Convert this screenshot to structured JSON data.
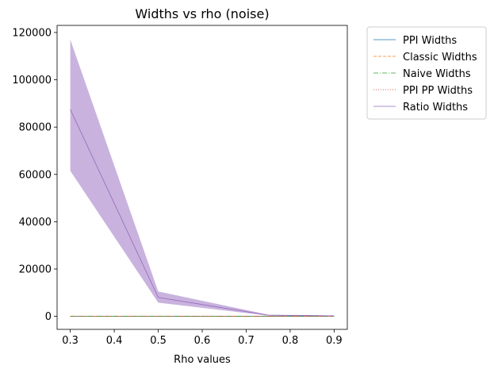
{
  "chart_data": {
    "type": "line",
    "title": "Widths vs rho (noise)",
    "xlabel": "Rho values",
    "ylabel": "",
    "x": [
      0.3,
      0.5,
      0.75,
      0.9
    ],
    "xlim": [
      0.27,
      0.93
    ],
    "ylim": [
      -5500,
      123000
    ],
    "xticks": [
      "0.3",
      "0.4",
      "0.5",
      "0.6",
      "0.7",
      "0.8",
      "0.9"
    ],
    "yticks": [
      "0",
      "20000",
      "40000",
      "60000",
      "80000",
      "100000",
      "120000"
    ],
    "grid": false,
    "legend_position": "outside-top-right",
    "series": [
      {
        "name": "PPI Widths",
        "values": [
          30,
          20,
          12,
          8
        ],
        "color": "#1f77b4",
        "dash": "solid"
      },
      {
        "name": "Classic Widths",
        "values": [
          40,
          28,
          16,
          10
        ],
        "color": "#ff7f0e",
        "dash": "dashed"
      },
      {
        "name": "Naive Widths",
        "values": [
          25,
          18,
          10,
          7
        ],
        "color": "#2ca02c",
        "dash": "dashdot"
      },
      {
        "name": "PPI PP Widths",
        "values": [
          35,
          24,
          14,
          9
        ],
        "color": "#d62728",
        "dash": "dotted"
      },
      {
        "name": "Ratio Widths",
        "values": [
          87500,
          8000,
          500,
          200
        ],
        "color": "#9467bd",
        "dash": "solid",
        "band_lower": [
          61500,
          5800,
          300,
          50
        ],
        "band_upper": [
          117000,
          10500,
          700,
          350
        ]
      }
    ]
  }
}
